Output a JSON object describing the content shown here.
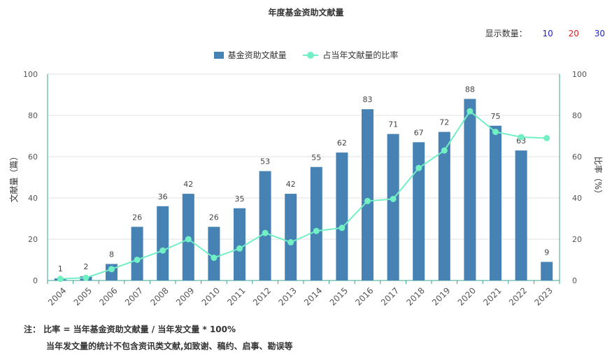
{
  "page": {
    "title": "年度基金资助文献量",
    "show_count_label": "显示数量：",
    "show_count_options": [
      {
        "label": "10",
        "color": "#2020d0"
      },
      {
        "label": "20",
        "color": "#e02020"
      },
      {
        "label": "30",
        "color": "#2020d0"
      }
    ],
    "note_line1": "注： 比率 = 当年基金资助文献量 / 当年发文量 * 100%",
    "note_line2": "当年发文量的统计不包含资讯类文献,如致谢、稿约、启事、勘误等"
  },
  "chart_data": {
    "type": "bar",
    "categories": [
      "2004",
      "2005",
      "2006",
      "2007",
      "2008",
      "2009",
      "2010",
      "2011",
      "2012",
      "2013",
      "2014",
      "2015",
      "2016",
      "2017",
      "2018",
      "2019",
      "2020",
      "2021",
      "2022",
      "2023"
    ],
    "series": [
      {
        "name": "基金资助文献量",
        "type": "bar",
        "axis": "left",
        "color": "#4682b4",
        "values": [
          1,
          2,
          8,
          26,
          36,
          42,
          26,
          35,
          53,
          42,
          55,
          62,
          83,
          71,
          67,
          72,
          88,
          75,
          63,
          9
        ]
      },
      {
        "name": "占当年文献量的比率",
        "type": "line",
        "axis": "right",
        "color": "#72f0c4",
        "values": [
          0.8,
          1.3,
          5.5,
          10,
          14.5,
          20,
          11,
          15.5,
          23,
          18.5,
          24,
          25.5,
          38.5,
          39.5,
          54.5,
          63,
          82,
          72,
          69.5,
          69
        ]
      }
    ],
    "ylabel": "文献量（篇）",
    "y2label": "比率（%）",
    "ylim": [
      0,
      100
    ],
    "y2lim": [
      0,
      100
    ],
    "yticks": [
      0,
      20,
      40,
      60,
      80,
      100
    ],
    "grid": true,
    "legend": "top-center"
  }
}
